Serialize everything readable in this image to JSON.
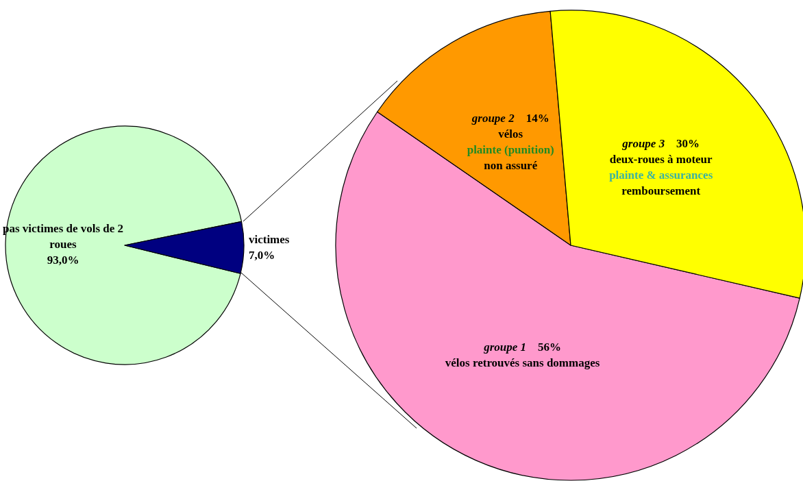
{
  "chart_data": [
    {
      "type": "pie",
      "categories": [
        "pas victimes de vols de 2\nroues",
        "victimes"
      ],
      "values": [
        93.0,
        7.0
      ],
      "value_labels": [
        "93,0%",
        "7,0%"
      ],
      "colors": [
        "#ccffcc",
        "#000080"
      ]
    },
    {
      "type": "pie",
      "categories": [
        "groupe 1\nvélos retrouvés sans dommages",
        "groupe 2\nvélos\nplainte (punition)\nnon assuré",
        "groupe 3\ndeux-roues à moteur\nplainte & assurances\nremboursement"
      ],
      "values": [
        56,
        14,
        30
      ],
      "value_labels": [
        "56%",
        "14%",
        "30%"
      ],
      "colors": [
        "#ff99cc",
        "#ff9900",
        "#ffff00"
      ]
    }
  ]
}
